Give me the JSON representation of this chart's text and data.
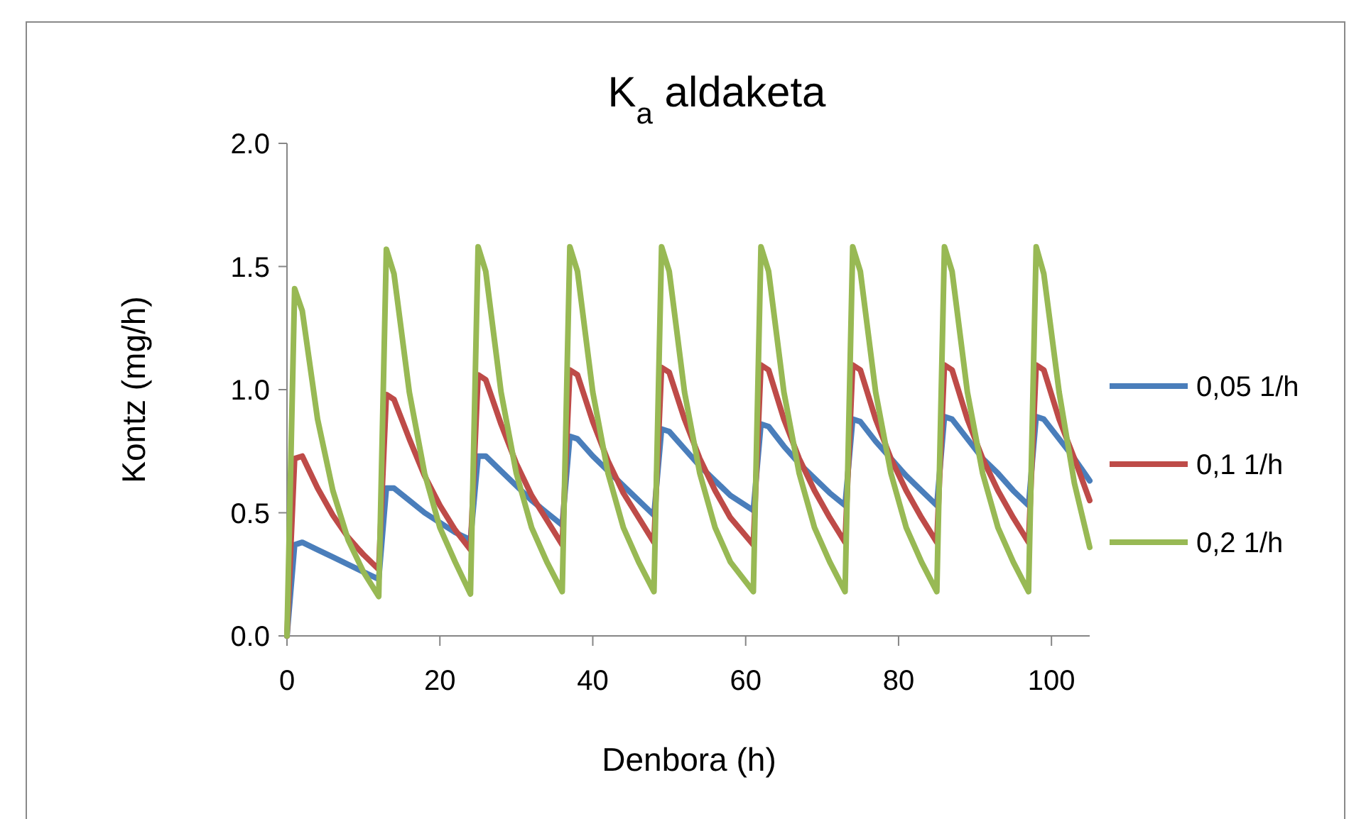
{
  "chart_data": {
    "type": "line",
    "title": "K$_{a}$ aldaketa",
    "xlabel": "Denbora (h)",
    "ylabel": "Kontz (mg/h)",
    "x": [
      0,
      1,
      2,
      4,
      6,
      8,
      10,
      12,
      13,
      14,
      16,
      18,
      20,
      22,
      24,
      25,
      26,
      28,
      30,
      32,
      34,
      36,
      37,
      38,
      40,
      42,
      44,
      46,
      48,
      49,
      50,
      52,
      54,
      56,
      58,
      61,
      62,
      63,
      65,
      67,
      69,
      71,
      73,
      74,
      75,
      77,
      79,
      81,
      83,
      85,
      86,
      87,
      89,
      91,
      93,
      95,
      97,
      98,
      99,
      101,
      103,
      105
    ],
    "series": [
      {
        "name": "0,05 1/h",
        "color": "#4a7ebb",
        "values": [
          0,
          0.37,
          0.38,
          0.35,
          0.32,
          0.29,
          0.26,
          0.23,
          0.6,
          0.6,
          0.55,
          0.5,
          0.46,
          0.42,
          0.39,
          0.73,
          0.73,
          0.67,
          0.61,
          0.55,
          0.5,
          0.45,
          0.81,
          0.8,
          0.73,
          0.67,
          0.61,
          0.55,
          0.49,
          0.84,
          0.83,
          0.76,
          0.69,
          0.63,
          0.57,
          0.51,
          0.86,
          0.85,
          0.77,
          0.7,
          0.64,
          0.58,
          0.53,
          0.88,
          0.87,
          0.79,
          0.72,
          0.65,
          0.59,
          0.53,
          0.89,
          0.88,
          0.8,
          0.72,
          0.66,
          0.59,
          0.53,
          0.89,
          0.88,
          0.8,
          0.72,
          0.63
        ]
      },
      {
        "name": "0,1 1/h",
        "color": "#be4b48",
        "values": [
          0,
          0.72,
          0.73,
          0.6,
          0.49,
          0.4,
          0.33,
          0.27,
          0.98,
          0.96,
          0.8,
          0.65,
          0.53,
          0.43,
          0.35,
          1.06,
          1.04,
          0.86,
          0.7,
          0.57,
          0.47,
          0.37,
          1.08,
          1.06,
          0.87,
          0.71,
          0.58,
          0.48,
          0.38,
          1.09,
          1.07,
          0.88,
          0.72,
          0.59,
          0.48,
          0.37,
          1.1,
          1.08,
          0.88,
          0.72,
          0.59,
          0.48,
          0.38,
          1.1,
          1.08,
          0.88,
          0.72,
          0.59,
          0.48,
          0.38,
          1.1,
          1.08,
          0.88,
          0.72,
          0.59,
          0.48,
          0.38,
          1.1,
          1.08,
          0.88,
          0.72,
          0.55
        ]
      },
      {
        "name": "0,2 1/h",
        "color": "#98b954",
        "values": [
          0,
          1.41,
          1.32,
          0.88,
          0.59,
          0.39,
          0.26,
          0.16,
          1.57,
          1.47,
          0.99,
          0.66,
          0.44,
          0.3,
          0.17,
          1.58,
          1.48,
          0.99,
          0.66,
          0.44,
          0.3,
          0.18,
          1.58,
          1.48,
          0.99,
          0.66,
          0.44,
          0.3,
          0.18,
          1.58,
          1.48,
          0.99,
          0.66,
          0.44,
          0.3,
          0.18,
          1.58,
          1.48,
          0.99,
          0.66,
          0.44,
          0.3,
          0.18,
          1.58,
          1.48,
          0.99,
          0.66,
          0.44,
          0.3,
          0.18,
          1.58,
          1.48,
          0.99,
          0.66,
          0.44,
          0.3,
          0.18,
          1.58,
          1.47,
          0.99,
          0.62,
          0.36
        ]
      }
    ],
    "xlim": [
      0,
      105
    ],
    "xticks": [
      0,
      20,
      40,
      60,
      80,
      100
    ],
    "ylim": [
      0,
      2
    ],
    "yticks": [
      {
        "value": 0,
        "label": "0.0"
      },
      {
        "value": 0.5,
        "label": "0.5"
      },
      {
        "value": 1,
        "label": "1.0"
      },
      {
        "value": 1.5,
        "label": "1.5"
      },
      {
        "value": 2,
        "label": "2.0"
      }
    ],
    "grid": false,
    "legend": "right",
    "marker": "none",
    "line_style": "solid"
  }
}
